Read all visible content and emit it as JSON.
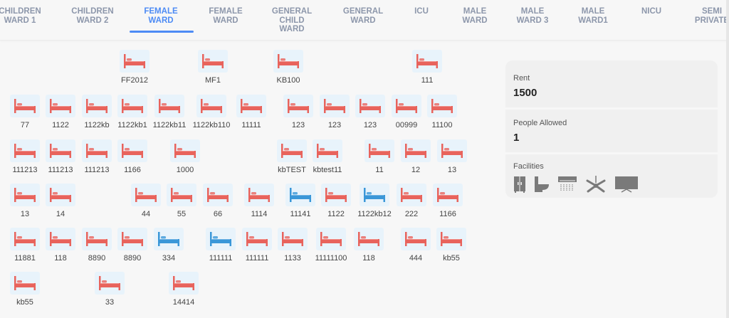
{
  "tabs": [
    {
      "label": "CHILDREN WARD 1",
      "active": false
    },
    {
      "label": "CHILDREN WARD 2",
      "active": false
    },
    {
      "label": "FEMALE WARD",
      "active": true
    },
    {
      "label": "FEMALE WARD",
      "active": false
    },
    {
      "label": "GENERAL CHILD WARD",
      "active": false
    },
    {
      "label": "GENERAL WARD",
      "active": false
    },
    {
      "label": "ICU",
      "active": false
    },
    {
      "label": "MALE WARD",
      "active": false
    },
    {
      "label": "MALE WARD 3",
      "active": false
    },
    {
      "label": "MALE WARD1",
      "active": false
    },
    {
      "label": "NICU",
      "active": false
    },
    {
      "label": "SEMI PRIVATE",
      "active": false
    }
  ],
  "colors": {
    "occupied": "#e8635c",
    "available": "#3a97d8",
    "accent": "#4d8bf5"
  },
  "beds": [
    [
      {
        "l": "FF2012",
        "s": "occupied"
      },
      {
        "l": "MF1",
        "s": "occupied"
      },
      {
        "l": "KB100",
        "s": "occupied"
      },
      {
        "l": "111",
        "s": "occupied"
      }
    ],
    [
      {
        "l": "77",
        "s": "occupied"
      },
      {
        "l": "1122",
        "s": "occupied"
      },
      {
        "l": "1122kb",
        "s": "occupied"
      },
      {
        "l": "1122kb1",
        "s": "occupied"
      },
      {
        "l": "1122kb11",
        "s": "occupied"
      },
      {
        "l": "1122kb110",
        "s": "occupied"
      },
      {
        "l": "11111",
        "s": "occupied"
      },
      {
        "l": "123",
        "s": "occupied"
      },
      {
        "l": "123",
        "s": "occupied"
      },
      {
        "l": "123",
        "s": "occupied"
      },
      {
        "l": "00999",
        "s": "occupied"
      },
      {
        "l": "11100",
        "s": "occupied"
      }
    ],
    [
      {
        "l": "111213",
        "s": "occupied"
      },
      {
        "l": "111213",
        "s": "occupied"
      },
      {
        "l": "111213",
        "s": "occupied"
      },
      {
        "l": "1166",
        "s": "occupied"
      },
      {
        "l": "1000",
        "s": "occupied"
      },
      {
        "l": "kbTEST",
        "s": "occupied"
      },
      {
        "l": "kbtest11",
        "s": "occupied"
      },
      {
        "l": "11",
        "s": "occupied"
      },
      {
        "l": "12",
        "s": "occupied"
      },
      {
        "l": "13",
        "s": "occupied"
      }
    ],
    [
      {
        "l": "13",
        "s": "occupied"
      },
      {
        "l": "14",
        "s": "occupied"
      },
      {
        "l": "44",
        "s": "occupied"
      },
      {
        "l": "55",
        "s": "occupied"
      },
      {
        "l": "66",
        "s": "occupied"
      },
      {
        "l": "1114",
        "s": "occupied"
      },
      {
        "l": "11141",
        "s": "available"
      },
      {
        "l": "1122",
        "s": "occupied"
      },
      {
        "l": "1122kb12",
        "s": "available"
      },
      {
        "l": "222",
        "s": "occupied"
      },
      {
        "l": "1166",
        "s": "occupied"
      }
    ],
    [
      {
        "l": "11881",
        "s": "occupied"
      },
      {
        "l": "118",
        "s": "occupied"
      },
      {
        "l": "8890",
        "s": "occupied"
      },
      {
        "l": "8890",
        "s": "occupied"
      },
      {
        "l": "334",
        "s": "available"
      },
      {
        "l": "111111",
        "s": "available"
      },
      {
        "l": "111111",
        "s": "occupied"
      },
      {
        "l": "1133",
        "s": "occupied"
      },
      {
        "l": "11111100",
        "s": "occupied"
      },
      {
        "l": "118",
        "s": "occupied"
      },
      {
        "l": "444",
        "s": "occupied"
      },
      {
        "l": "kb55",
        "s": "occupied"
      }
    ],
    [
      {
        "l": "kb55",
        "s": "occupied"
      },
      {
        "l": "33",
        "s": "occupied"
      },
      {
        "l": "14414",
        "s": "occupied"
      }
    ]
  ],
  "details": {
    "rent_label": "Rent",
    "rent": "1500",
    "people_label": "People Allowed",
    "people": "1",
    "facilities_label": "Facilities",
    "facilities": [
      "wardrobe-icon",
      "toilet-icon",
      "air-conditioner-icon",
      "ceiling-fan-icon",
      "television-icon"
    ]
  }
}
